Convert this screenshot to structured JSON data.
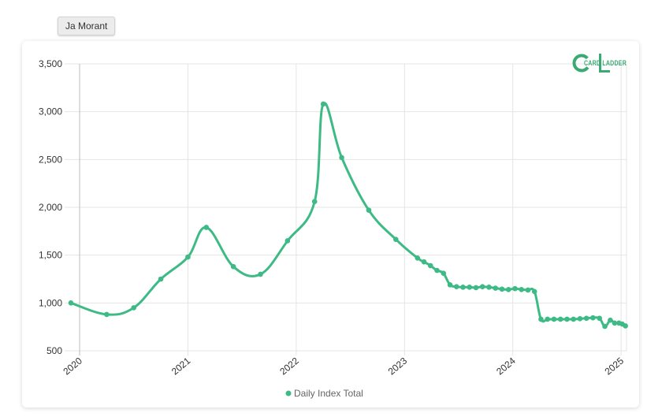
{
  "tag": {
    "label": "Ja Morant"
  },
  "logo": {
    "text": "CARD LADDER",
    "color": "#3aaa74"
  },
  "chart_data": {
    "type": "line",
    "title": "",
    "xlabel": "",
    "ylabel": "",
    "ylim": [
      500,
      3500
    ],
    "y_ticks": [
      "3,500",
      "3,000",
      "2,500",
      "2,000",
      "1,500",
      "1,000",
      "500"
    ],
    "y_tick_values": [
      3500,
      3000,
      2500,
      2000,
      1500,
      1000,
      500
    ],
    "x_ticks": [
      "2020",
      "2021",
      "2022",
      "2023",
      "2024",
      "2025"
    ],
    "x_tick_values": [
      2020,
      2021,
      2022,
      2023,
      2024,
      2025
    ],
    "xlim": [
      2019.92,
      2025.05
    ],
    "grid": true,
    "legend_position": "bottom",
    "series": [
      {
        "name": "Daily Index Total",
        "color": "#3dba85",
        "x": [
          2019.92,
          2020.25,
          2020.5,
          2020.75,
          2021.0,
          2021.17,
          2021.42,
          2021.67,
          2021.92,
          2022.17,
          2022.25,
          2022.42,
          2022.67,
          2022.92,
          2023.12,
          2023.18,
          2023.24,
          2023.3,
          2023.36,
          2023.42,
          2023.48,
          2023.54,
          2023.6,
          2023.66,
          2023.72,
          2023.78,
          2023.84,
          2023.9,
          2023.96,
          2024.02,
          2024.08,
          2024.14,
          2024.2,
          2024.26,
          2024.32,
          2024.38,
          2024.44,
          2024.5,
          2024.56,
          2024.62,
          2024.68,
          2024.74,
          2024.8,
          2024.85,
          2024.9,
          2024.94,
          2024.98,
          2025.01,
          2025.04
        ],
        "y": [
          1000,
          880,
          950,
          1250,
          1480,
          1790,
          1380,
          1300,
          1650,
          2060,
          3080,
          2520,
          1970,
          1665,
          1470,
          1430,
          1390,
          1340,
          1310,
          1190,
          1170,
          1165,
          1165,
          1160,
          1170,
          1165,
          1155,
          1145,
          1140,
          1150,
          1140,
          1135,
          1120,
          830,
          830,
          830,
          830,
          830,
          830,
          835,
          840,
          845,
          840,
          755,
          820,
          790,
          790,
          780,
          760
        ]
      }
    ]
  }
}
